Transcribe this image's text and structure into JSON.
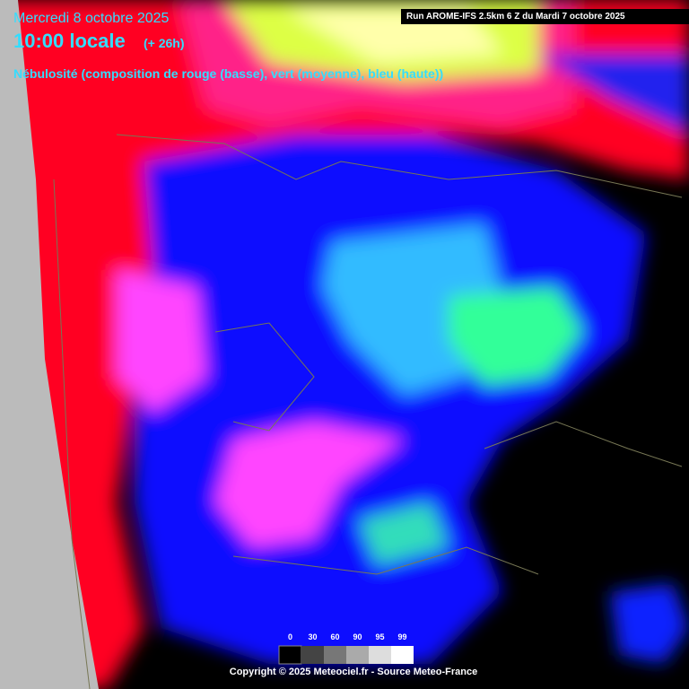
{
  "header": {
    "date": "Mercredi 8 octobre 2025",
    "hour": "10:00 locale",
    "lead": "(+ 26h)",
    "description": "Nébulosité (composition de rouge (basse), vert (moyenne), bleu (haute))",
    "run": "Run AROME-IFS 2.5km 6 Z du Mardi 7 octobre 2025"
  },
  "legend": {
    "labels": [
      0,
      30,
      60,
      90,
      95,
      99
    ]
  },
  "footer": {
    "copyright": "Copyright © 2025 Meteociel.fr - Source Meteo-France"
  }
}
